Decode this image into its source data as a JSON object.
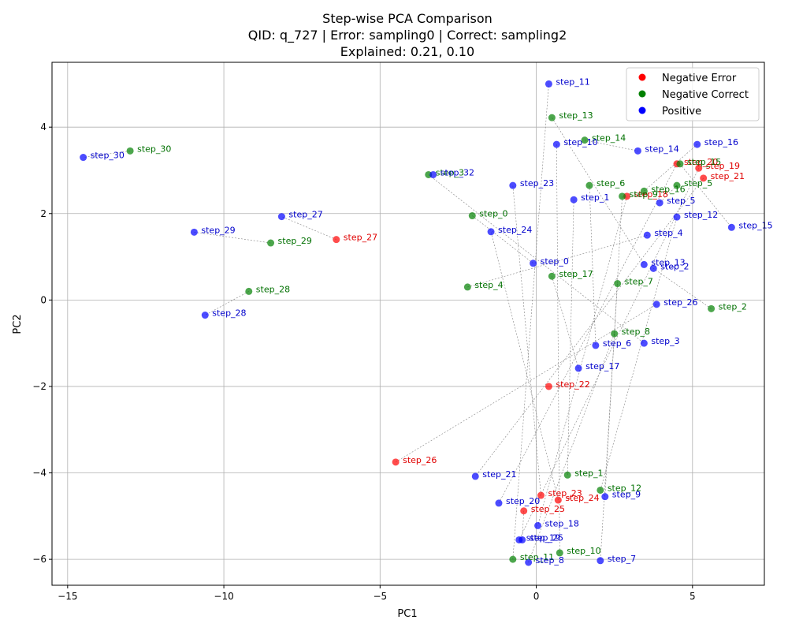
{
  "chart_data": {
    "type": "scatter",
    "title_lines": [
      "Step-wise PCA Comparison",
      "QID: q_727 | Error: sampling0 | Correct: sampling2",
      "Explained: 0.21, 0.10"
    ],
    "xlabel": "PC1",
    "ylabel": "PC2",
    "xlim": [
      -15.5,
      7.3
    ],
    "ylim": [
      -6.6,
      5.5
    ],
    "xticks": [
      -15,
      -10,
      -5,
      0,
      5
    ],
    "yticks": [
      -6,
      -4,
      -2,
      0,
      2,
      4
    ],
    "grid": true,
    "legend_position": "top-right",
    "colors": {
      "error": "#ff0000",
      "correct": "#008000",
      "positive": "#0000ff",
      "line": "#808080",
      "grid": "#b0b0b0",
      "error_label": "#e00000",
      "correct_label": "#007000",
      "positive_label": "#0000cc"
    },
    "series": [
      {
        "key": "error",
        "name": "Negative Error",
        "points": [
          {
            "label": "step_27",
            "x": -6.4,
            "y": 1.4
          },
          {
            "label": "step_26",
            "x": -4.5,
            "y": -3.75
          },
          {
            "label": "step_22",
            "x": 0.4,
            "y": -2.0
          },
          {
            "label": "step_23",
            "x": 0.15,
            "y": -4.52
          },
          {
            "label": "step_24",
            "x": 0.7,
            "y": -4.63
          },
          {
            "label": "step_25",
            "x": -0.4,
            "y": -4.88
          },
          {
            "label": "step_18",
            "x": 2.9,
            "y": 2.4
          },
          {
            "label": "step_20",
            "x": 4.5,
            "y": 3.15
          },
          {
            "label": "step_19",
            "x": 5.2,
            "y": 3.05
          },
          {
            "label": "step_21",
            "x": 5.35,
            "y": 2.82
          }
        ]
      },
      {
        "key": "correct",
        "name": "Negative Correct",
        "points": [
          {
            "label": "step_30",
            "x": -13.0,
            "y": 3.45
          },
          {
            "label": "step_29",
            "x": -8.5,
            "y": 1.32
          },
          {
            "label": "step_28",
            "x": -9.2,
            "y": 0.2
          },
          {
            "label": "step_3",
            "x": -3.45,
            "y": 2.9
          },
          {
            "label": "step_0",
            "x": -2.05,
            "y": 1.95
          },
          {
            "label": "step_4",
            "x": -2.2,
            "y": 0.3
          },
          {
            "label": "step_13",
            "x": 0.5,
            "y": 4.22
          },
          {
            "label": "step_14",
            "x": 1.55,
            "y": 3.7
          },
          {
            "label": "step_6",
            "x": 1.7,
            "y": 2.65
          },
          {
            "label": "step_9",
            "x": 2.75,
            "y": 2.4
          },
          {
            "label": "step_16",
            "x": 3.45,
            "y": 2.52
          },
          {
            "label": "step_15",
            "x": 4.6,
            "y": 3.15
          },
          {
            "label": "step_5",
            "x": 4.5,
            "y": 2.65
          },
          {
            "label": "step_17",
            "x": 0.5,
            "y": 0.55
          },
          {
            "label": "step_7",
            "x": 2.6,
            "y": 0.38
          },
          {
            "label": "step_2",
            "x": 5.6,
            "y": -0.2
          },
          {
            "label": "step_8",
            "x": 2.5,
            "y": -0.78
          },
          {
            "label": "step_1",
            "x": 1.0,
            "y": -4.05
          },
          {
            "label": "step_12",
            "x": 2.05,
            "y": -4.4
          },
          {
            "label": "step_10",
            "x": 0.75,
            "y": -5.85
          },
          {
            "label": "step_11",
            "x": -0.75,
            "y": -6.0
          }
        ]
      },
      {
        "key": "positive",
        "name": "Positive",
        "points": [
          {
            "label": "step_30",
            "x": -14.5,
            "y": 3.3
          },
          {
            "label": "step_29",
            "x": -10.95,
            "y": 1.57
          },
          {
            "label": "step_27",
            "x": -8.15,
            "y": 1.93
          },
          {
            "label": "step_28",
            "x": -10.6,
            "y": -0.35
          },
          {
            "label": "step_32",
            "x": -3.3,
            "y": 2.9
          },
          {
            "label": "step_23",
            "x": -0.75,
            "y": 2.65
          },
          {
            "label": "step_24",
            "x": -1.45,
            "y": 1.58
          },
          {
            "label": "step_0",
            "x": -0.1,
            "y": 0.85
          },
          {
            "label": "step_11",
            "x": 0.4,
            "y": 5.0
          },
          {
            "label": "step_10",
            "x": 0.65,
            "y": 3.6
          },
          {
            "label": "step_1",
            "x": 1.2,
            "y": 2.32
          },
          {
            "label": "step_14",
            "x": 3.25,
            "y": 3.45
          },
          {
            "label": "step_16",
            "x": 5.15,
            "y": 3.6
          },
          {
            "label": "step_5",
            "x": 3.95,
            "y": 2.25
          },
          {
            "label": "step_12",
            "x": 4.5,
            "y": 1.92
          },
          {
            "label": "step_15",
            "x": 6.25,
            "y": 1.68
          },
          {
            "label": "step_4",
            "x": 3.55,
            "y": 1.5
          },
          {
            "label": "step_13",
            "x": 3.45,
            "y": 0.82
          },
          {
            "label": "step_2",
            "x": 3.75,
            "y": 0.73
          },
          {
            "label": "step_26",
            "x": 3.85,
            "y": -0.1
          },
          {
            "label": "step_6",
            "x": 1.9,
            "y": -1.05
          },
          {
            "label": "step_3",
            "x": 3.45,
            "y": -1.0
          },
          {
            "label": "step_17",
            "x": 1.35,
            "y": -1.58
          },
          {
            "label": "step_21",
            "x": -1.95,
            "y": -4.08
          },
          {
            "label": "step_20",
            "x": -1.2,
            "y": -4.7
          },
          {
            "label": "step_9",
            "x": 2.2,
            "y": -4.55
          },
          {
            "label": "step_18",
            "x": 0.05,
            "y": -5.22
          },
          {
            "label": "step_19",
            "x": -0.55,
            "y": -5.55
          },
          {
            "label": "step_25",
            "x": -0.45,
            "y": -5.55
          },
          {
            "label": "step_8",
            "x": -0.25,
            "y": -6.07
          },
          {
            "label": "step_7",
            "x": 2.05,
            "y": -6.03
          }
        ]
      }
    ]
  }
}
